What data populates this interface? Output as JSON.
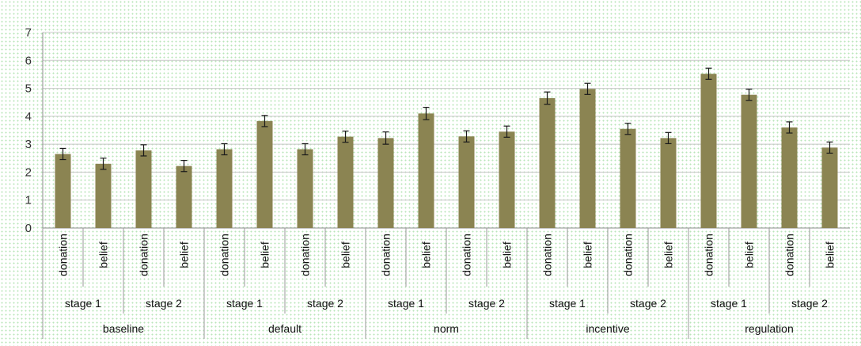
{
  "chart_data": {
    "type": "bar",
    "title": "",
    "xlabel": "",
    "ylabel": "",
    "ylim": [
      0,
      7
    ],
    "y_ticks": [
      "0",
      "1",
      "2",
      "3",
      "4",
      "5",
      "6",
      "7"
    ],
    "grid": true,
    "legend": "none",
    "bar_color": "#8b8452",
    "error_bar_color": "#1a1a1a",
    "groups": [
      "baseline",
      "default",
      "norm",
      "incentive",
      "regulation"
    ],
    "stages": [
      "stage 1",
      "stage 2"
    ],
    "measures": [
      "donation",
      "belief"
    ],
    "values": [
      2.65,
      2.3,
      2.78,
      2.22,
      2.82,
      3.83,
      2.82,
      3.27,
      3.22,
      4.1,
      3.28,
      3.45,
      4.65,
      4.98,
      3.55,
      3.22,
      5.52,
      4.77,
      3.6,
      2.88
    ],
    "errors": [
      0.2,
      0.2,
      0.2,
      0.2,
      0.2,
      0.2,
      0.2,
      0.2,
      0.22,
      0.22,
      0.2,
      0.2,
      0.22,
      0.2,
      0.2,
      0.2,
      0.2,
      0.2,
      0.2,
      0.2
    ]
  }
}
